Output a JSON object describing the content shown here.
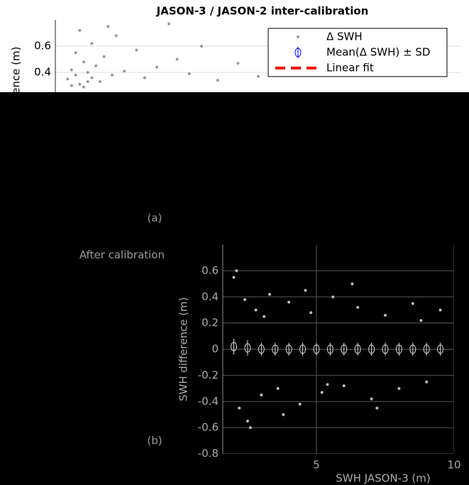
{
  "chart_data": [
    {
      "type": "scatter",
      "title": "JASON-3 / JASON-2 inter-calibration",
      "ylabel": "SWH difference (m)",
      "panel_label": "(a)",
      "xlim": [
        0,
        10
      ],
      "ylim": [
        0.25,
        0.8
      ],
      "yticks": [
        0.4,
        0.6
      ],
      "grid": true,
      "legend": "upper right",
      "series": [
        {
          "name": "Δ SWH",
          "color": "#999999",
          "x": [
            0.3,
            0.4,
            0.5,
            0.5,
            0.6,
            0.7,
            0.8,
            0.9,
            1.0,
            1.2,
            1.4,
            1.5,
            1.7,
            2.0,
            2.2,
            2.5,
            2.8,
            3.0,
            3.3,
            3.6,
            4.0,
            4.5,
            5.0,
            0.4,
            0.6,
            0.8,
            1.1,
            1.3,
            0.7,
            0.9
          ],
          "values": [
            0.35,
            0.42,
            0.38,
            0.55,
            0.72,
            0.48,
            0.33,
            0.62,
            0.45,
            0.52,
            0.38,
            0.68,
            0.41,
            0.57,
            0.36,
            0.44,
            0.77,
            0.5,
            0.39,
            0.6,
            0.34,
            0.47,
            0.37,
            0.3,
            0.31,
            0.4,
            0.33,
            0.75,
            0.29,
            0.36
          ]
        },
        {
          "name": "Mean(Δ SWH) ± SD",
          "color": "#0000ff"
        },
        {
          "name": "Linear fit",
          "color": "#ff0000"
        }
      ]
    },
    {
      "type": "scatter",
      "subtitle": "After calibration",
      "xlabel": "SWH JASON-3 (m)",
      "ylabel": "SWH difference (m)",
      "panel_label": "(b)",
      "xlim": [
        1.6,
        10
      ],
      "ylim": [
        -0.8,
        0.8
      ],
      "xticks": [
        5,
        10
      ],
      "yticks": [
        -0.8,
        -0.6,
        -0.4,
        -0.2,
        0,
        0.2,
        0.4,
        0.6
      ],
      "grid": true,
      "series": [
        {
          "name": "Δ SWH",
          "color": "#bbbbbb",
          "x": [
            2.0,
            2.2,
            2.4,
            2.6,
            2.8,
            3.0,
            3.3,
            3.6,
            4.0,
            4.4,
            4.8,
            5.2,
            5.6,
            6.0,
            6.5,
            7.0,
            7.5,
            8.0,
            8.5,
            9.0,
            9.5,
            2.1,
            2.5,
            3.1,
            3.8,
            4.6,
            5.4,
            6.3,
            7.2,
            8.8
          ],
          "values": [
            0.55,
            -0.45,
            0.38,
            -0.6,
            0.3,
            -0.35,
            0.42,
            -0.3,
            0.36,
            -0.42,
            0.28,
            -0.33,
            0.4,
            -0.28,
            0.32,
            -0.38,
            0.26,
            -0.3,
            0.35,
            -0.25,
            0.3,
            0.6,
            -0.55,
            0.25,
            -0.5,
            0.45,
            -0.27,
            0.5,
            -0.45,
            0.22
          ]
        },
        {
          "name": "Mean(Δ SWH) ± SD",
          "color": "#dddddd",
          "x": [
            2.0,
            2.5,
            3.0,
            3.5,
            4.0,
            4.5,
            5.0,
            5.5,
            6.0,
            6.5,
            7.0,
            7.5,
            8.0,
            8.5,
            9.0,
            9.5
          ],
          "values": [
            0.02,
            0.01,
            0.0,
            0.0,
            0.0,
            0.0,
            0.0,
            0.0,
            0.0,
            0.0,
            0.0,
            0.0,
            0.0,
            0.0,
            0.0,
            0.0
          ],
          "sd": [
            0.06,
            0.06,
            0.05,
            0.05,
            0.05,
            0.05,
            0.05,
            0.05,
            0.05,
            0.05,
            0.05,
            0.05,
            0.05,
            0.05,
            0.05,
            0.05
          ]
        }
      ]
    }
  ]
}
